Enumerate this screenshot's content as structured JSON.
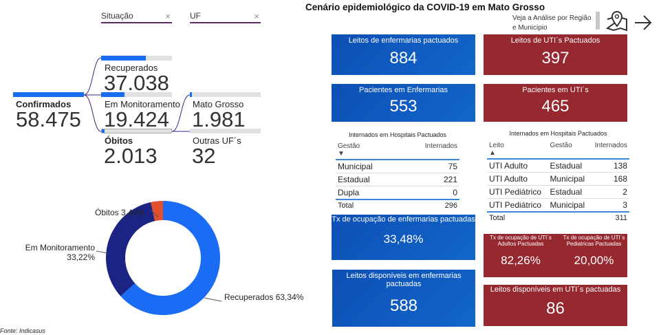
{
  "filters": {
    "situacao": "Situação",
    "uf": "UF",
    "clear": "×"
  },
  "tree": {
    "root": {
      "label": "Confirmados",
      "value": "58.475",
      "fill": 1.0
    },
    "situacao": [
      {
        "label": "Recuperados",
        "value": "37.038",
        "fill": 0.6334
      },
      {
        "label": "Em Monitoramento",
        "value": "19.424",
        "fill": 0.3322
      },
      {
        "label": "Óbitos",
        "value": "2.013",
        "fill": 0.0344
      }
    ],
    "uf": [
      {
        "label": "Mato Grosso",
        "value": "1.981",
        "fill": 0.03
      },
      {
        "label": "Outras UF´s",
        "value": "32",
        "fill": 0.0
      }
    ]
  },
  "donut": {
    "slices": [
      {
        "label": "Recuperados 63,34%",
        "value": 63.34,
        "color": "#1a6cf5"
      },
      {
        "label": "Em Monitoramento",
        "sub": "33,22%",
        "value": 33.22,
        "color": "#1b2482"
      },
      {
        "label": "Óbitos 3,44%",
        "value": 3.44,
        "color": "#e0502e"
      }
    ]
  },
  "source": "Fonte: Indicasus",
  "header": {
    "title": "Cenário epidemiológico da COVID-19 em Mato Grosso",
    "link_line1": "Veja a Análise por Região",
    "link_line2": "e Municipio"
  },
  "cards": {
    "leitos_enf": {
      "title": "Leitos de enfermarias pactuados",
      "value": "884"
    },
    "leitos_uti": {
      "title": "Leitos de UTI´s Pactuados",
      "value": "397"
    },
    "pac_enf": {
      "title": "Pacientes em Enfermarias",
      "value": "553"
    },
    "pac_uti": {
      "title": "Pacientes em UTI´s",
      "value": "465"
    },
    "tx_enf": {
      "title": "Tx de ocupação de enfermarias pactuadas",
      "value": "33,48%"
    },
    "tx_uti_adulto": {
      "title": "Tx de ocupação de UTI´s Adultos Pactuadas",
      "value": "82,26%"
    },
    "tx_uti_ped": {
      "title": "Tx de ocupação de UTI´s Pediatricas Pactuadas",
      "value": "20,00%"
    },
    "disp_enf": {
      "title": "Leitos disponíveis em enfermarias pactuadas",
      "value": "588"
    },
    "disp_uti": {
      "title": "Leitos disponíveis em UTI´s pactuadas",
      "value": "86"
    }
  },
  "table_enf": {
    "title": "Internados em Hospitais Pactuados",
    "headers": [
      "Gestão",
      "Internados"
    ],
    "rows": [
      [
        "Municipal",
        "75"
      ],
      [
        "Estadual",
        "221"
      ],
      [
        "Dupla",
        "0"
      ]
    ],
    "total": [
      "Total",
      "296"
    ]
  },
  "table_uti": {
    "title": "Internados em Hospitais Pactuados",
    "headers": [
      "Leito",
      "Gestão",
      "Internados"
    ],
    "rows": [
      [
        "UTI Adulto",
        "Estadual",
        "138"
      ],
      [
        "UTI Adulto",
        "Municipal",
        "168"
      ],
      [
        "UTI Pediátrico",
        "Estadual",
        "2"
      ],
      [
        "UTI Pediátrico",
        "Municipal",
        "3"
      ]
    ],
    "total": [
      "Total",
      "",
      "311"
    ]
  }
}
